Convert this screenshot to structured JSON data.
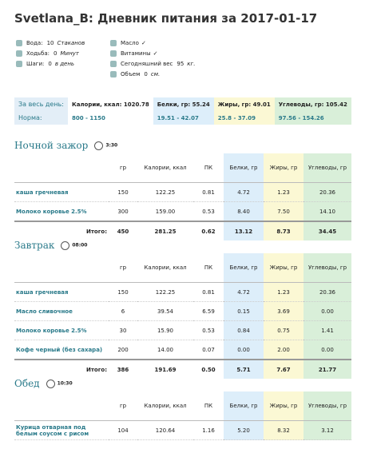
{
  "header": {
    "title": "Svetlana_B: Дневник питания за 2017-01-17"
  },
  "stats_left": [
    {
      "label": "Вода:",
      "value": "10",
      "unit": "Стаканов"
    },
    {
      "label": "Ходьба:",
      "value": "0",
      "unit": "Минут"
    },
    {
      "label": "Шаги:",
      "value": "0",
      "unit": "в день"
    }
  ],
  "stats_right": [
    {
      "label": "Масло",
      "check": "✓"
    },
    {
      "label": "Витамины",
      "check": "✓"
    },
    {
      "label": "Сегодняшний вес",
      "value": "95",
      "unit": "кг."
    },
    {
      "label": "Объем",
      "value": "0",
      "unit": "см."
    }
  ],
  "summary": {
    "rows": [
      [
        "За весь день:",
        "Калории, ккал: 1020.78",
        "Белки, гр: 55.24",
        "Жиры, гр: 49.01",
        "Углеводы, гр: 105.42"
      ],
      [
        "Норма:",
        "800 - 1150",
        "19.51 - 42.07",
        "25.8 - 37.09",
        "97.56 - 154.26"
      ]
    ]
  },
  "table_headers": [
    "гр",
    "Калории, ккал",
    "ПК",
    "Белки, гр",
    "Жиры, гр",
    "Углеводы, гр"
  ],
  "meals": [
    {
      "name": "Ночной зажор",
      "time": "3:30",
      "rows": [
        [
          "каша гречневая",
          "150",
          "122.25",
          "0.81",
          "4.72",
          "1.23",
          "20.36"
        ],
        [
          "Молоко коровье 2.5%",
          "300",
          "159.00",
          "0.53",
          "8.40",
          "7.50",
          "14.10"
        ]
      ],
      "total": [
        "Итого:",
        "450",
        "281.25",
        "0.62",
        "13.12",
        "8.73",
        "34.45"
      ]
    },
    {
      "name": "Завтрак",
      "time": "08:00",
      "rows": [
        [
          "каша гречневая",
          "150",
          "122.25",
          "0.81",
          "4.72",
          "1.23",
          "20.36"
        ],
        [
          "Масло сливочное",
          "6",
          "39.54",
          "6.59",
          "0.15",
          "3.69",
          "0.00"
        ],
        [
          "Молоко коровье 2.5%",
          "30",
          "15.90",
          "0.53",
          "0.84",
          "0.75",
          "1.41"
        ],
        [
          "Кофе черный (без сахара)",
          "200",
          "14.00",
          "0.07",
          "0.00",
          "2.00",
          "0.00"
        ]
      ],
      "total": [
        "Итого:",
        "386",
        "191.69",
        "0.50",
        "5.71",
        "7.67",
        "21.77"
      ]
    },
    {
      "name": "Обед",
      "time": "10:30",
      "rows": [
        [
          "Курица отварная под белым соусом с рисом",
          "104",
          "120.64",
          "1.16",
          "5.20",
          "8.32",
          "3.12"
        ]
      ]
    }
  ]
}
